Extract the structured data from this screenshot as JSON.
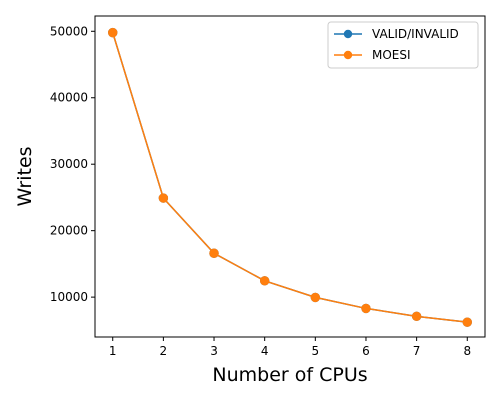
{
  "chart_data": {
    "type": "line",
    "title": "",
    "xlabel": "Number of CPUs",
    "ylabel": "Writes",
    "x": [
      1,
      2,
      3,
      4,
      5,
      6,
      7,
      8
    ],
    "xlim": [
      0.65,
      8.35
    ],
    "ylim": [
      4000,
      52300
    ],
    "xticks": [
      1,
      2,
      3,
      4,
      5,
      6,
      7,
      8
    ],
    "yticks": [
      10000,
      20000,
      30000,
      40000,
      50000
    ],
    "grid": false,
    "legend": {
      "position": "top-right"
    },
    "series": [
      {
        "name": "VALID/INVALID",
        "color": "#1f77b4",
        "marker": "circle",
        "values": [
          49800,
          24900,
          16600,
          12450,
          9960,
          8300,
          7110,
          6230
        ]
      },
      {
        "name": "MOESI",
        "color": "#ff7f0e",
        "marker": "circle",
        "values": [
          49800,
          24900,
          16600,
          12450,
          9960,
          8300,
          7110,
          6230
        ]
      }
    ]
  }
}
